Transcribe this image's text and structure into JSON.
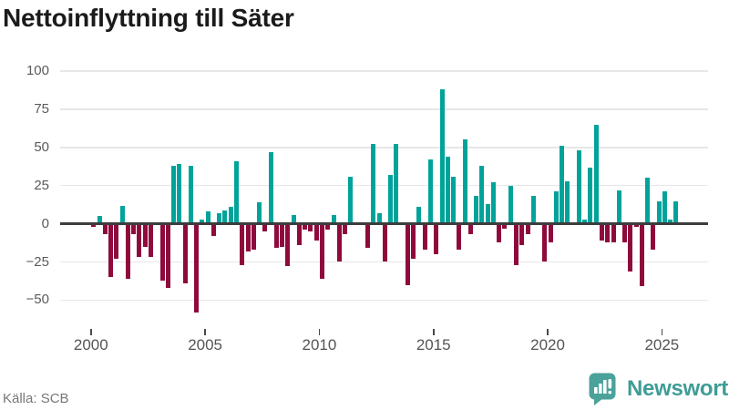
{
  "title": "Nettoinflyttning till Säter",
  "footer": {
    "source": "Källa: SCB"
  },
  "logo": {
    "name": "Newsworthy",
    "icon": "newsworthy-speech-bubble-bar-chart-icon"
  },
  "colors": {
    "positive_bar": "#00a39a",
    "negative_bar": "#8f0a3c",
    "gridline": "#e7e7e7",
    "zero_line": "#3d3d3d",
    "axis_text": "#5a5a5a",
    "title_text": "#1b1b1b",
    "source_text": "#787878",
    "logo_teal": "#3f9c96"
  },
  "chart_data": {
    "type": "bar",
    "title": "Nettoinflyttning till Säter",
    "frequency": "quarterly",
    "start_period": "2000-Q1",
    "end_period": "2025-Q3",
    "grid": "horizontal",
    "legend": "none",
    "y_ticks": [
      100,
      75,
      50,
      25,
      0,
      -25,
      -50
    ],
    "ylim": [
      -65,
      110
    ],
    "x_tick_labels": [
      "2000",
      "2005",
      "2010",
      "2015",
      "2020",
      "2025"
    ],
    "values": [
      -2,
      5,
      -7,
      -35,
      -23,
      12,
      -36,
      -7,
      -22,
      -15,
      -22,
      0,
      -37,
      -42,
      38,
      39,
      -39,
      38,
      -58,
      3,
      8,
      -8,
      7,
      9,
      11,
      41,
      -27,
      -18,
      -17,
      14,
      -5,
      47,
      -16,
      -15,
      -28,
      6,
      -14,
      -4,
      -5,
      -11,
      -36,
      -4,
      6,
      -25,
      -7,
      31,
      0,
      0,
      -16,
      52,
      7,
      -25,
      32,
      52,
      0,
      -40,
      -23,
      11,
      -17,
      42,
      -20,
      88,
      44,
      31,
      -17,
      55,
      -7,
      18,
      38,
      13,
      27,
      -12,
      -3,
      25,
      -27,
      -14,
      -7,
      18,
      0,
      -25,
      -12,
      21,
      51,
      28,
      0,
      48,
      3,
      37,
      65,
      -11,
      -12,
      -12,
      22,
      -12,
      -31,
      -2,
      -41,
      30,
      -17,
      15,
      21,
      3,
      15
    ]
  }
}
